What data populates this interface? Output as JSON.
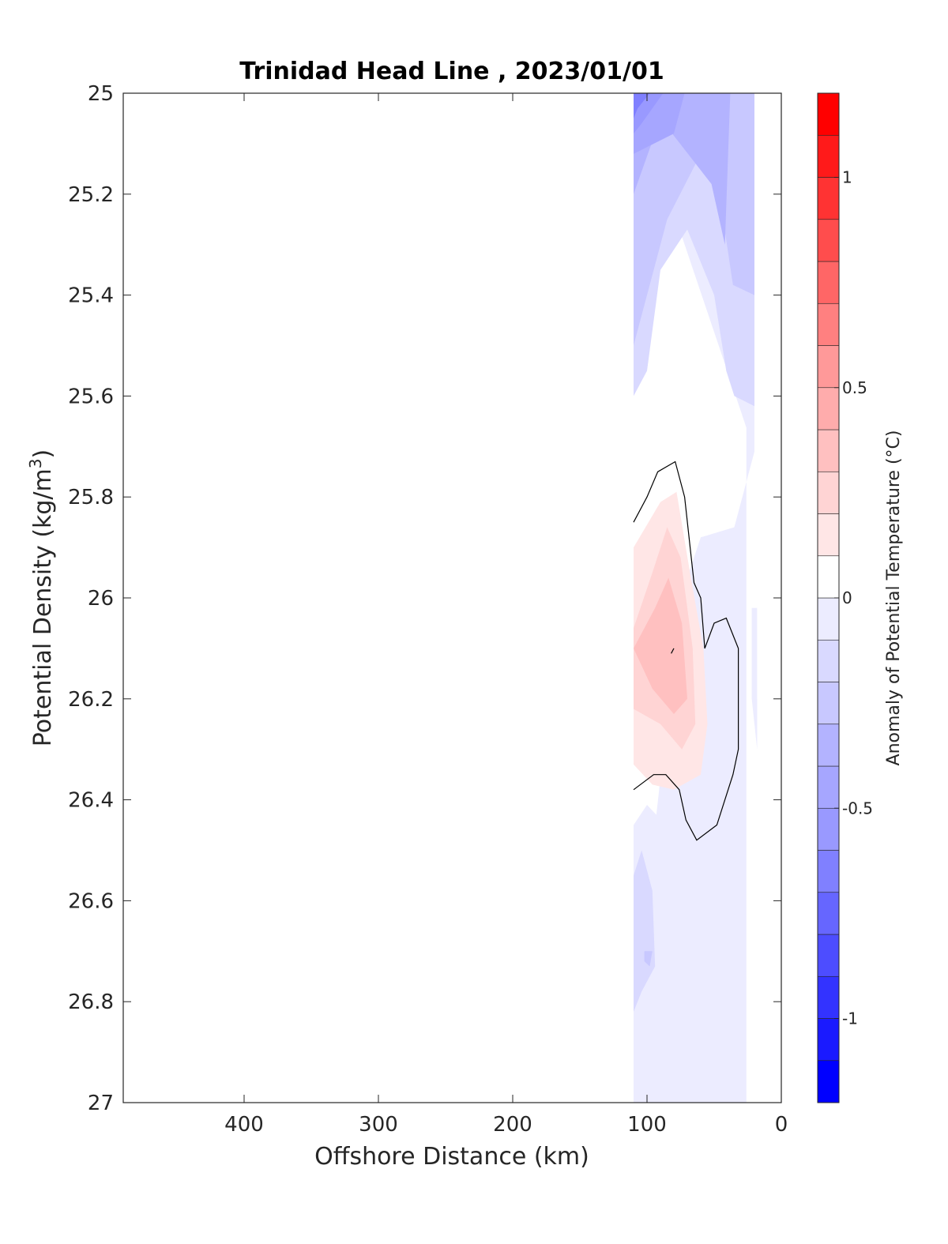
{
  "chart_data": {
    "type": "contourf",
    "title": "Trinidad Head Line , 2023/01/01",
    "xlabel": "Offshore Distance (km)",
    "ylabel": "Potential Density (kg/m",
    "ylabel_sup": "3",
    "ylabel_close": ")",
    "xlim": [
      490,
      0
    ],
    "x_reversed": true,
    "ylim": [
      25,
      27
    ],
    "y_reversed": true,
    "x_ticks": [
      400,
      300,
      200,
      100,
      0
    ],
    "y_ticks": [
      25,
      25.2,
      25.4,
      25.6,
      25.8,
      26,
      26.2,
      26.4,
      26.6,
      26.8,
      27
    ],
    "data_extent_x": [
      110,
      20
    ],
    "colorbar": {
      "label": "Anomaly of Potential Temperature (°C)",
      "range": [
        -1.2,
        1.2
      ],
      "step": 0.1,
      "ticks": [
        1,
        0.5,
        0,
        -0.5,
        -1
      ],
      "tick_labels": [
        "1",
        "0.5",
        "0",
        "-0.5",
        "-1"
      ],
      "colors": {
        "-1.2": "#0000ff",
        "-1.1": "#1a1aff",
        "-1.0": "#3333ff",
        "-0.9": "#4d4dff",
        "-0.8": "#6666ff",
        "-0.7": "#8080ff",
        "-0.6": "#9999ff",
        "-0.5": "#a6a6ff",
        "-0.4": "#b3b3ff",
        "-0.3": "#c8c8ff",
        "-0.2": "#d9d9ff",
        "-0.1": "#ececff",
        "0.0": "#ffffff",
        "0.1": "#ffe6e6",
        "0.2": "#ffd4d4",
        "0.3": "#ffc0c0",
        "0.4": "#ffacac",
        "0.5": "#ff9999",
        "0.6": "#ff8080",
        "0.7": "#ff6666",
        "0.8": "#ff4d4d",
        "0.9": "#ff3333",
        "1.0": "#ff1a1a",
        "1.1": "#ff0000"
      }
    },
    "contour_bands": [
      {
        "level": -0.1,
        "polygon": [
          [
            110,
            25.0
          ],
          [
            20,
            25.0
          ],
          [
            20,
            25.71
          ],
          [
            35,
            25.86
          ],
          [
            60,
            25.88
          ],
          [
            75,
            26.0
          ],
          [
            96,
            26.5
          ],
          [
            110,
            26.8
          ],
          [
            110,
            27.0
          ],
          [
            26,
            27.0
          ],
          [
            26,
            25.6
          ],
          [
            20,
            25.71
          ],
          [
            110,
            25.0
          ]
        ]
      },
      {
        "level": -0.2,
        "polygon": [
          [
            110,
            25.0
          ],
          [
            20,
            25.0
          ],
          [
            20,
            25.62
          ],
          [
            35,
            25.6
          ],
          [
            41,
            25.55
          ],
          [
            50,
            25.4
          ],
          [
            70,
            25.27
          ],
          [
            90,
            25.35
          ],
          [
            100,
            25.55
          ],
          [
            110,
            25.6
          ]
        ]
      },
      {
        "level": -0.3,
        "polygon": [
          [
            110,
            25.0
          ],
          [
            20,
            25.0
          ],
          [
            20,
            25.4
          ],
          [
            36,
            25.38
          ],
          [
            45,
            25.22
          ],
          [
            60,
            25.12
          ],
          [
            85,
            25.25
          ],
          [
            100,
            25.4
          ],
          [
            110,
            25.5
          ]
        ]
      },
      {
        "level": -0.4,
        "polygon": [
          [
            110,
            25.0
          ],
          [
            38,
            25.0
          ],
          [
            42,
            25.3
          ],
          [
            52,
            25.18
          ],
          [
            90,
            25.05
          ],
          [
            110,
            25.2
          ]
        ]
      },
      {
        "level": -0.5,
        "polygon": [
          [
            110,
            25.0
          ],
          [
            72,
            25.0
          ],
          [
            80,
            25.08
          ],
          [
            110,
            25.12
          ]
        ]
      },
      {
        "level": -0.6,
        "polygon": [
          [
            110,
            25.0
          ],
          [
            88,
            25.0
          ],
          [
            104,
            25.06
          ],
          [
            110,
            25.08
          ]
        ]
      },
      {
        "level": -0.7,
        "polygon": [
          [
            110,
            25.0
          ],
          [
            98,
            25.0
          ],
          [
            107,
            25.03
          ],
          [
            110,
            25.05
          ]
        ]
      },
      {
        "level": 0.1,
        "polygon": [
          [
            110,
            25.9
          ],
          [
            90,
            25.81
          ],
          [
            78,
            25.79
          ],
          [
            68,
            25.95
          ],
          [
            58,
            26.1
          ],
          [
            55,
            26.25
          ],
          [
            60,
            26.35
          ],
          [
            80,
            26.38
          ],
          [
            96,
            26.37
          ],
          [
            110,
            26.33
          ]
        ]
      },
      {
        "level": 0.2,
        "polygon": [
          [
            110,
            26.06
          ],
          [
            96,
            25.95
          ],
          [
            85,
            25.86
          ],
          [
            75,
            25.92
          ],
          [
            66,
            26.1
          ],
          [
            64,
            26.25
          ],
          [
            74,
            26.3
          ],
          [
            90,
            26.25
          ],
          [
            110,
            26.22
          ]
        ]
      },
      {
        "level": 0.3,
        "polygon": [
          [
            110,
            26.1
          ],
          [
            94,
            26.02
          ],
          [
            84,
            25.96
          ],
          [
            74,
            26.05
          ],
          [
            70,
            26.2
          ],
          [
            80,
            26.23
          ],
          [
            96,
            26.18
          ]
        ]
      },
      {
        "level": -0.1,
        "polygon": [
          [
            110,
            26.45
          ],
          [
            100,
            26.41
          ],
          [
            86,
            26.45
          ],
          [
            80,
            26.55
          ],
          [
            64,
            26.62
          ],
          [
            56,
            26.7
          ],
          [
            62,
            26.85
          ],
          [
            70,
            26.88
          ],
          [
            95,
            26.8
          ],
          [
            110,
            26.9
          ]
        ]
      },
      {
        "level": -0.2,
        "polygon": [
          [
            110,
            26.55
          ],
          [
            104,
            26.5
          ],
          [
            96,
            26.58
          ],
          [
            94,
            26.73
          ],
          [
            104,
            26.78
          ],
          [
            110,
            26.82
          ]
        ]
      },
      {
        "level": -0.3,
        "polygon": [
          [
            102,
            26.7
          ],
          [
            96,
            26.7
          ],
          [
            98,
            26.73
          ],
          [
            102,
            26.72
          ]
        ]
      },
      {
        "level": -0.1,
        "polygon": [
          [
            40,
            26.5
          ],
          [
            30,
            26.45
          ],
          [
            30,
            26.85
          ],
          [
            44,
            26.87
          ],
          [
            56,
            26.82
          ],
          [
            58,
            26.65
          ]
        ]
      },
      {
        "level": -0.1,
        "polygon": [
          [
            22,
            26.02
          ],
          [
            18,
            26.02
          ],
          [
            18,
            26.3
          ],
          [
            22,
            26.2
          ]
        ]
      }
    ],
    "zero_contours": [
      [
        [
          110,
          25.85
        ],
        [
          100,
          25.8
        ],
        [
          92,
          25.75
        ],
        [
          79,
          25.73
        ],
        [
          72,
          25.8
        ],
        [
          65,
          25.97
        ],
        [
          60,
          26.0
        ],
        [
          57,
          26.1
        ],
        [
          50,
          26.05
        ],
        [
          41,
          26.04
        ],
        [
          32,
          26.1
        ],
        [
          32,
          26.3
        ],
        [
          36,
          26.35
        ],
        [
          48,
          26.45
        ],
        [
          63,
          26.48
        ],
        [
          71,
          26.44
        ],
        [
          76,
          26.38
        ],
        [
          86,
          26.35
        ],
        [
          95,
          26.35
        ],
        [
          110,
          26.38
        ]
      ],
      [
        [
          80,
          26.1
        ],
        [
          82,
          26.11
        ]
      ]
    ]
  }
}
